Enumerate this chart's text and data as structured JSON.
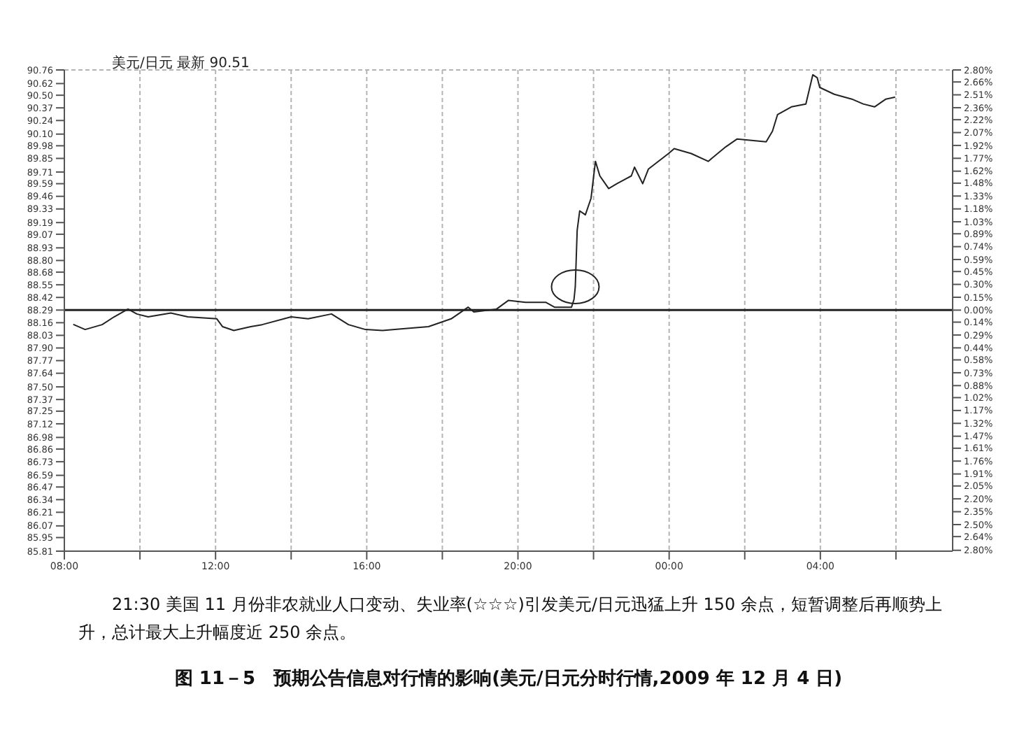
{
  "chart_data": {
    "type": "line",
    "title": "图 11－5　预期公告信息对行情的影响(美元/日元分时行情,2009 年 12 月 4 日)",
    "subtitle": "美元/日元 最新 90.51",
    "annotations": [
      "21:30 美国 11 月份非农就业人口变动、失业率(☆☆☆)引发美元/日元迅猛上升 150 余点，短暂调整后再顺势上升，总计最大上升幅度近 250 余点。"
    ],
    "series": [
      {
        "color": "#222222",
        "x": [
          "2009-12-04T08:15",
          "2009-12-04T08:33",
          "2009-12-04T09:00",
          "2009-12-04T09:19",
          "2009-12-04T09:41",
          "2009-12-04T09:55",
          "2009-12-04T10:13",
          "2009-12-04T10:49",
          "2009-12-04T11:16",
          "2009-12-04T12:02",
          "2009-12-04T12:11",
          "2009-12-04T12:29",
          "2009-12-04T12:56",
          "2009-12-04T13:14",
          "2009-12-04T14:00",
          "2009-12-04T14:27",
          "2009-12-04T15:04",
          "2009-12-04T15:31",
          "2009-12-04T15:58",
          "2009-12-04T16:25",
          "2009-12-04T17:01",
          "2009-12-04T17:38",
          "2009-12-04T18:14",
          "2009-12-04T18:41",
          "2009-12-04T18:50",
          "2009-12-04T19:26",
          "2009-12-04T19:45",
          "2009-12-04T20:12",
          "2009-12-04T20:44",
          "2009-12-04T20:58",
          "2009-12-04T21:25",
          "2009-12-04T21:29",
          "2009-12-04T21:31",
          "2009-12-04T21:34",
          "2009-12-04T21:38",
          "2009-12-04T21:47",
          "2009-12-04T21:56",
          "2009-12-04T22:03",
          "2009-12-04T22:10",
          "2009-12-04T22:24",
          "2009-12-04T22:37",
          "2009-12-04T23:00",
          "2009-12-04T23:05",
          "2009-12-04T23:18",
          "2009-12-04T23:27",
          "2009-12-04T23:59",
          "2009-12-05T00:08",
          "2009-12-05T00:35",
          "2009-12-05T01:02",
          "2009-12-05T01:30",
          "2009-12-05T01:48",
          "2009-12-05T02:34",
          "2009-12-05T02:44",
          "2009-12-05T02:52",
          "2009-12-05T03:14",
          "2009-12-05T03:37",
          "2009-12-05T03:48",
          "2009-12-05T03:55",
          "2009-12-05T03:59",
          "2009-12-05T04:22",
          "2009-12-05T04:50",
          "2009-12-05T05:08",
          "2009-12-05T05:26",
          "2009-12-05T05:44",
          "2009-12-05T05:58"
        ],
        "values": [
          88.14,
          88.09,
          88.14,
          88.22,
          88.3,
          88.25,
          88.22,
          88.26,
          88.22,
          88.2,
          88.12,
          88.08,
          88.12,
          88.14,
          88.22,
          88.2,
          88.25,
          88.14,
          88.09,
          88.08,
          88.1,
          88.12,
          88.2,
          88.32,
          88.27,
          88.3,
          88.39,
          88.37,
          88.37,
          88.32,
          88.32,
          88.4,
          88.53,
          89.11,
          89.31,
          89.27,
          89.44,
          89.82,
          89.67,
          89.54,
          89.59,
          89.67,
          89.76,
          89.59,
          89.74,
          89.9,
          89.95,
          89.9,
          89.82,
          89.97,
          90.05,
          90.02,
          90.13,
          90.3,
          90.38,
          90.41,
          90.71,
          90.68,
          90.58,
          90.51,
          90.46,
          90.41,
          90.38,
          90.46,
          90.48
        ]
      }
    ],
    "xlim": [
      "2009-12-04T08:00",
      "2009-12-05T07:30"
    ],
    "xticks": [
      {
        "value": "2009-12-04T08:00",
        "label": "08:00"
      },
      {
        "value": "2009-12-04T10:00",
        "label": null
      },
      {
        "value": "2009-12-04T12:00",
        "label": "12:00"
      },
      {
        "value": "2009-12-04T14:00",
        "label": null
      },
      {
        "value": "2009-12-04T16:00",
        "label": "16:00"
      },
      {
        "value": "2009-12-04T18:00",
        "label": null
      },
      {
        "value": "2009-12-04T20:00",
        "label": "20:00"
      },
      {
        "value": "2009-12-04T22:00",
        "label": null
      },
      {
        "value": "2009-12-05T00:00",
        "label": "00:00"
      },
      {
        "value": "2009-12-05T02:00",
        "label": null
      },
      {
        "value": "2009-12-05T04:00",
        "label": "04:00"
      },
      {
        "value": "2009-12-05T06:00",
        "label": null
      }
    ],
    "ylim": [
      85.81,
      90.76
    ],
    "yticks": [
      85.81,
      85.95,
      86.07,
      86.21,
      86.34,
      86.47,
      86.59,
      86.73,
      86.86,
      86.98,
      87.12,
      87.25,
      87.37,
      {
        "value": 87.5,
        "label": "87.50"
      },
      87.64,
      87.77,
      {
        "value": 87.9,
        "label": "87.90"
      },
      88.03,
      88.16,
      88.29,
      88.42,
      88.55,
      88.68,
      {
        "value": 88.8,
        "label": "88.80"
      },
      88.93,
      89.07,
      89.19,
      89.33,
      89.46,
      89.59,
      89.71,
      89.85,
      89.98,
      {
        "value": 90.1,
        "label": "90.10"
      },
      90.24,
      90.37,
      {
        "value": 90.5,
        "label": "90.50"
      },
      90.62,
      90.76
    ],
    "y2lim": [
      -2.81,
      2.8
    ],
    "y2ticks": [
      {
        "value": -2.8,
        "label": "2.80%"
      },
      {
        "value": -2.64,
        "label": "2.64%"
      },
      {
        "value": -2.5,
        "label": "2.50%"
      },
      {
        "value": -2.35,
        "label": "2.35%"
      },
      {
        "value": -2.2,
        "label": "2.20%"
      },
      {
        "value": -2.05,
        "label": "2.05%"
      },
      {
        "value": -1.91,
        "label": "1.91%"
      },
      {
        "value": -1.76,
        "label": "1.76%"
      },
      {
        "value": -1.61,
        "label": "1.61%"
      },
      {
        "value": -1.47,
        "label": "1.47%"
      },
      {
        "value": -1.32,
        "label": "1.32%"
      },
      {
        "value": -1.17,
        "label": "1.17%"
      },
      {
        "value": -1.02,
        "label": "1.02%"
      },
      {
        "value": -0.88,
        "label": "0.88%"
      },
      {
        "value": -0.73,
        "label": "0.73%"
      },
      {
        "value": -0.58,
        "label": "0.58%"
      },
      {
        "value": -0.44,
        "label": "0.44%"
      },
      {
        "value": -0.29,
        "label": "0.29%"
      },
      {
        "value": -0.14,
        "label": "0.14%"
      },
      {
        "value": 0,
        "label": "0.00%"
      },
      {
        "value": 0.15,
        "label": "0.15%"
      },
      {
        "value": 0.3,
        "label": "0.30%"
      },
      {
        "value": 0.45,
        "label": "0.45%"
      },
      {
        "value": 0.59,
        "label": "0.59%"
      },
      {
        "value": 0.74,
        "label": "0.74%"
      },
      {
        "value": 0.89,
        "label": "0.89%"
      },
      {
        "value": 1.03,
        "label": "1.03%"
      },
      {
        "value": 1.18,
        "label": "1.18%"
      },
      {
        "value": 1.33,
        "label": "1.33%"
      },
      {
        "value": 1.48,
        "label": "1.48%"
      },
      {
        "value": 1.62,
        "label": "1.62%"
      },
      {
        "value": 1.77,
        "label": "1.77%"
      },
      {
        "value": 1.92,
        "label": "1.92%"
      },
      {
        "value": 2.07,
        "label": "2.07%"
      },
      {
        "value": 2.22,
        "label": "2.22%"
      },
      {
        "value": 2.36,
        "label": "2.36%"
      },
      {
        "value": 2.51,
        "label": "2.51%"
      },
      {
        "value": 2.66,
        "label": "2.66%"
      },
      {
        "value": 2.8,
        "label": "2.80%"
      }
    ],
    "ref_lines": [
      {
        "axis": "y",
        "value": 88.29,
        "color": "#222222"
      }
    ],
    "grid": true,
    "marker": "none",
    "line_style": "solid"
  }
}
